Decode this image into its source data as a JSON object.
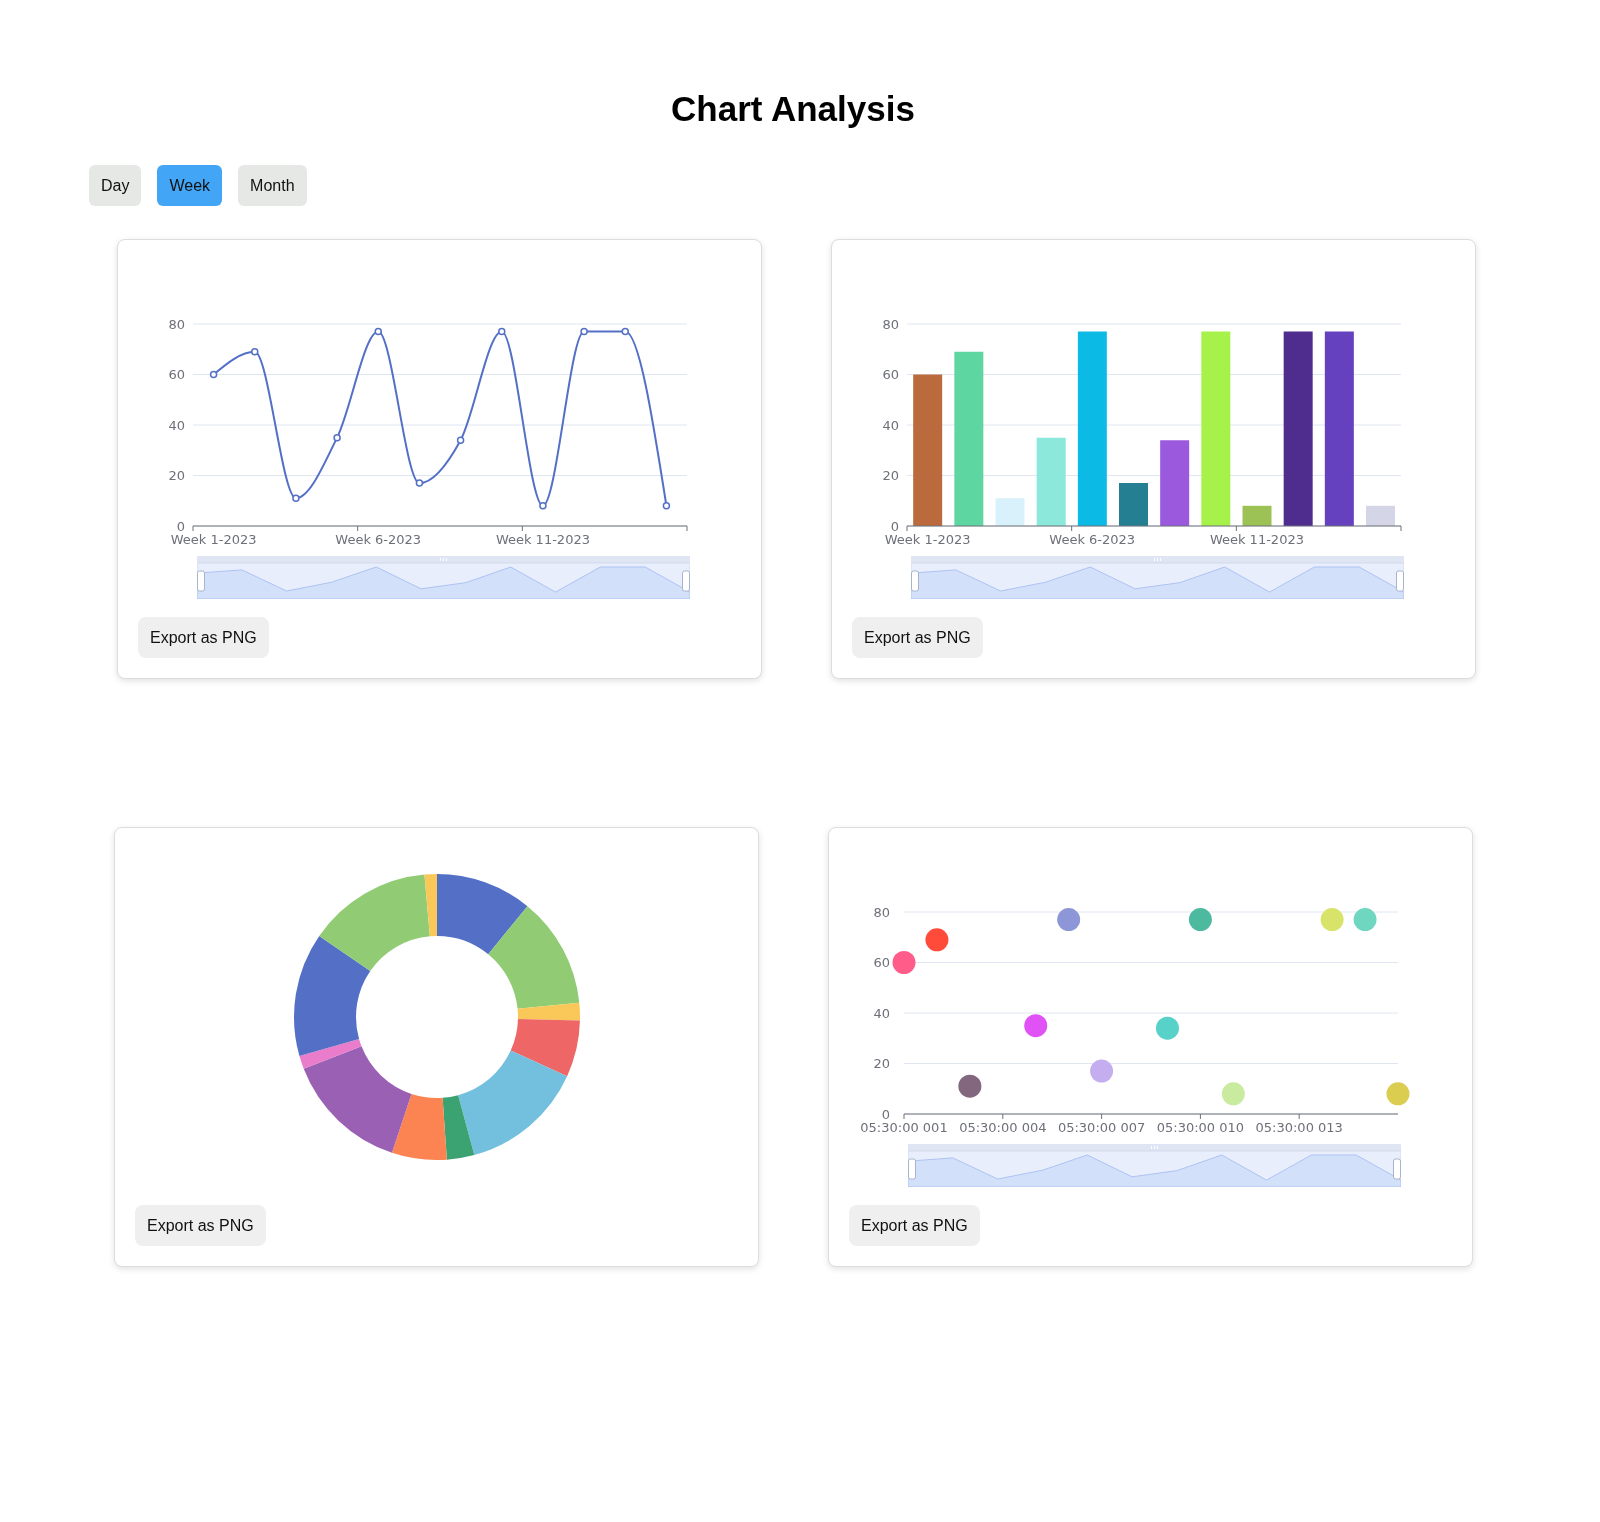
{
  "chart_data": [
    {
      "type": "line",
      "title": "Chart Analysis",
      "annotations": [
        "Day",
        "Week",
        "Month",
        "Export as PNG"
      ],
      "categories": [
        "Week 1-2023",
        null,
        null,
        null,
        "Week 6-2023",
        null,
        null,
        null,
        "Week 11-2023",
        null,
        null,
        null
      ],
      "values": [
        60,
        69,
        11,
        35,
        77,
        17,
        34,
        77,
        8,
        77,
        77,
        8
      ],
      "color": "#5470c6",
      "ylim": [
        0,
        80
      ],
      "yticks": [
        0,
        20,
        40,
        60,
        80
      ],
      "grid": "y",
      "marker": "circle"
    },
    {
      "type": "bar",
      "annotations": [
        "Export as PNG"
      ],
      "categories": [
        "Week 1-2023",
        null,
        null,
        null,
        "Week 6-2023",
        null,
        null,
        null,
        "Week 11-2023",
        null,
        null,
        null
      ],
      "values": [
        60,
        69,
        11,
        35,
        77,
        17,
        34,
        77,
        8,
        77,
        77,
        8
      ],
      "colors": [
        "#bb6a3d",
        "#5ed6a2",
        "#d8f1fa",
        "#8be8da",
        "#0bbbe6",
        "#237f91",
        "#9b59de",
        "#a6f24a",
        "#9cc154",
        "#4f2d8f",
        "#6541c0",
        "#d4d5e6"
      ],
      "ylim": [
        0,
        80
      ],
      "yticks": [
        0,
        20,
        40,
        60,
        80
      ],
      "grid": "y"
    },
    {
      "type": "donut",
      "annotations": [
        "Export as PNG"
      ],
      "categories": [
        null,
        null,
        null,
        null,
        null,
        null,
        null,
        null,
        null,
        null,
        null,
        null
      ],
      "values": [
        10.9,
        12.5,
        2,
        6.4,
        14,
        3.1,
        6.2,
        14,
        1.5,
        14,
        14,
        1.4
      ],
      "colors": [
        "#5470c6",
        "#91cc75",
        "#fac858",
        "#ee6666",
        "#73c0de",
        "#3ba272",
        "#fc8452",
        "#9a60b4",
        "#ea7ccc",
        "#5470c6",
        "#91cc75",
        "#fac858"
      ]
    },
    {
      "type": "scatter",
      "annotations": [
        "Export as PNG"
      ],
      "categories": [
        "05:30:00 001",
        null,
        null,
        "05:30:00 004",
        null,
        null,
        "05:30:00 007",
        null,
        null,
        "05:30:00 010",
        null,
        null,
        "05:30:00 013",
        null,
        null,
        null
      ],
      "values": [
        60,
        69,
        11,
        null,
        35,
        77,
        17,
        null,
        34,
        77,
        8,
        null,
        null,
        77,
        77,
        8
      ],
      "colors": [
        "#ff5c8a",
        "#ff4b3a",
        "#82677f",
        null,
        "#e052f5",
        "#8d96d6",
        "#c4aef0",
        null,
        "#58d1c9",
        "#4dbaa0",
        "#c8eba0",
        null,
        null,
        "#d8e36a",
        "#6fd6c0",
        "#dacd50"
      ],
      "ylim": [
        0,
        80
      ],
      "yticks": [
        0,
        20,
        40,
        60,
        80
      ],
      "grid": "y",
      "marker": "circle"
    }
  ]
}
